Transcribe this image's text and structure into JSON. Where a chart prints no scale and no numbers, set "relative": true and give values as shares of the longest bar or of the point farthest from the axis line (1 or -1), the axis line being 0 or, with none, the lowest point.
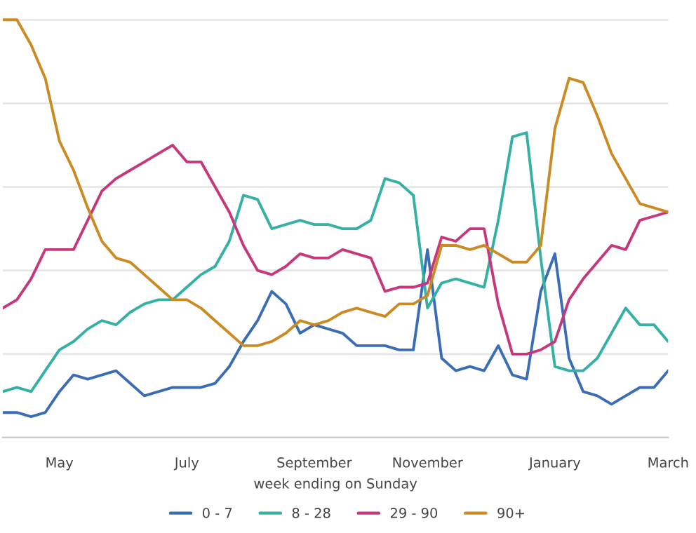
{
  "chart_data": {
    "type": "line",
    "relative": true,
    "xlabel": "week ending on Sunday",
    "categories": [
      null,
      null,
      null,
      null,
      "May",
      null,
      null,
      null,
      null,
      null,
      null,
      null,
      null,
      "July",
      null,
      null,
      null,
      null,
      null,
      null,
      null,
      null,
      "September",
      null,
      null,
      null,
      null,
      null,
      null,
      null,
      "November",
      null,
      null,
      null,
      null,
      null,
      null,
      null,
      null,
      "January",
      null,
      null,
      null,
      null,
      null,
      null,
      null,
      "March"
    ],
    "grid": "y",
    "legend": "bottom",
    "marker": "none",
    "line_style": "solid",
    "series": [
      {
        "name": "0 - 7",
        "color": "#3a6db5",
        "values": [
          0.06,
          0.06,
          0.05,
          0.06,
          0.11,
          0.15,
          0.14,
          0.15,
          0.16,
          0.13,
          0.1,
          0.11,
          0.12,
          0.12,
          0.12,
          0.13,
          0.17,
          0.23,
          0.28,
          0.35,
          0.32,
          0.25,
          0.27,
          0.26,
          0.25,
          0.22,
          0.22,
          0.22,
          0.21,
          0.21,
          0.45,
          0.19,
          0.16,
          0.17,
          0.16,
          0.22,
          0.15,
          0.14,
          0.35,
          0.44,
          0.19,
          0.11,
          0.1,
          0.08,
          0.1,
          0.12,
          0.12,
          0.16
        ]
      },
      {
        "name": "8 - 28",
        "color": "#35b0a5",
        "values": [
          0.11,
          0.12,
          0.11,
          0.16,
          0.21,
          0.23,
          0.26,
          0.28,
          0.27,
          0.3,
          0.32,
          0.33,
          0.33,
          0.36,
          0.39,
          0.41,
          0.47,
          0.58,
          0.57,
          0.5,
          0.51,
          0.52,
          0.51,
          0.51,
          0.5,
          0.5,
          0.52,
          0.62,
          0.61,
          0.58,
          0.31,
          0.37,
          0.38,
          0.37,
          0.36,
          0.52,
          0.72,
          0.73,
          0.43,
          0.17,
          0.16,
          0.16,
          0.19,
          0.25,
          0.31,
          0.27,
          0.27,
          0.23
        ]
      },
      {
        "name": "29 - 90",
        "color": "#c6377b",
        "values": [
          0.31,
          0.33,
          0.38,
          0.45,
          0.45,
          0.45,
          0.52,
          0.59,
          0.62,
          0.64,
          0.66,
          0.68,
          0.7,
          0.66,
          0.66,
          0.6,
          0.54,
          0.46,
          0.4,
          0.39,
          0.41,
          0.44,
          0.43,
          0.43,
          0.45,
          0.44,
          0.43,
          0.35,
          0.36,
          0.36,
          0.37,
          0.48,
          0.47,
          0.5,
          0.5,
          0.32,
          0.2,
          0.2,
          0.21,
          0.23,
          0.33,
          0.38,
          0.42,
          0.46,
          0.45,
          0.52,
          0.53,
          0.54
        ]
      },
      {
        "name": "90+",
        "color": "#cc8a22",
        "values": [
          1.0,
          1.0,
          0.94,
          0.86,
          0.71,
          0.64,
          0.55,
          0.47,
          0.43,
          0.42,
          0.39,
          0.36,
          0.33,
          0.33,
          0.31,
          0.28,
          0.25,
          0.22,
          0.22,
          0.23,
          0.25,
          0.28,
          0.27,
          0.28,
          0.3,
          0.31,
          0.3,
          0.29,
          0.32,
          0.32,
          0.34,
          0.46,
          0.46,
          0.45,
          0.46,
          0.44,
          0.42,
          0.42,
          0.46,
          0.74,
          0.86,
          0.85,
          0.77,
          0.68,
          0.62,
          0.56,
          0.55,
          0.54
        ]
      }
    ]
  }
}
